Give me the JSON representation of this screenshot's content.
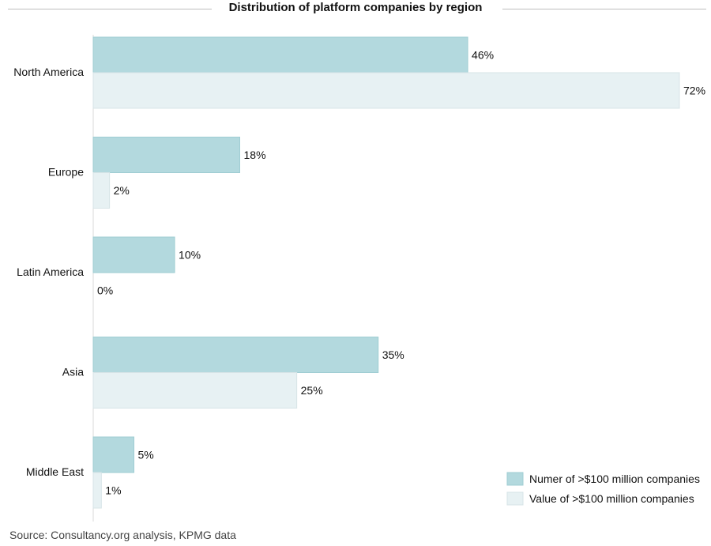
{
  "chart_data": {
    "type": "bar",
    "orientation": "horizontal",
    "title": "Distribution of platform companies by region",
    "categories": [
      "North America",
      "Europe",
      "Latin America",
      "Asia",
      "Middle East"
    ],
    "series": [
      {
        "name": "Numer of >$100 million companies",
        "values": [
          46,
          18,
          10,
          35,
          5
        ],
        "color": "#b3d9de"
      },
      {
        "name": "Value of >$100 million companies",
        "values": [
          72,
          2,
          0,
          25,
          1
        ],
        "color": "#e7f1f3"
      }
    ],
    "value_suffix": "%",
    "xlim": [
      0,
      72
    ],
    "grid": false,
    "legend_position": "bottom-right",
    "source": "Source: Consultancy.org analysis, KPMG data"
  }
}
